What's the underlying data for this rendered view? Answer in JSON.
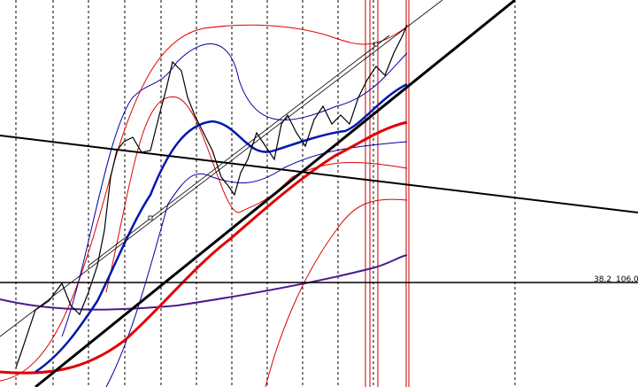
{
  "level_line": {
    "ratio": "38.2",
    "price": "106.05"
  }
}
